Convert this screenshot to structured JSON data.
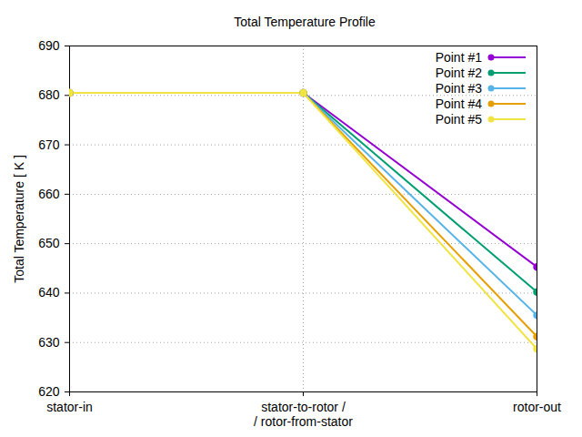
{
  "chart_data": {
    "type": "line",
    "title": "Total Temperature Profile",
    "y_label": "Total Temperature [ K ]",
    "categories": [
      "stator-in",
      "stator-to-rotor /\n/ rotor-from-stator",
      "rotor-out"
    ],
    "series": [
      {
        "name": "Point #1",
        "color": "#9400d3",
        "values": [
          680.5,
          680.5,
          645.3
        ]
      },
      {
        "name": "Point #2",
        "color": "#009e73",
        "values": [
          680.5,
          680.5,
          640.2
        ]
      },
      {
        "name": "Point #3",
        "color": "#56b4e9",
        "values": [
          680.5,
          680.5,
          635.5
        ]
      },
      {
        "name": "Point #4",
        "color": "#e69f00",
        "values": [
          680.5,
          680.5,
          631.2
        ]
      },
      {
        "name": "Point #5",
        "color": "#f0e442",
        "values": [
          680.5,
          680.5,
          628.7
        ]
      }
    ],
    "ylim": [
      620,
      690
    ],
    "yticks": [
      620,
      630,
      640,
      650,
      660,
      670,
      680,
      690
    ],
    "grid": true,
    "legend": "top-right",
    "marker": "circle",
    "line_style": "solid"
  }
}
